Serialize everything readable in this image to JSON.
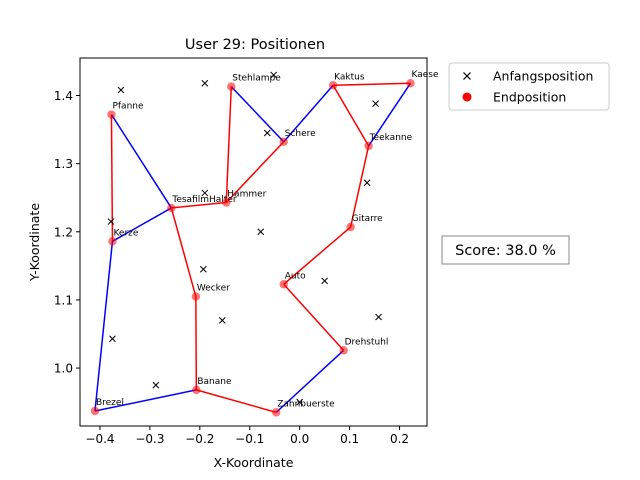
{
  "chart_data": {
    "type": "scatter",
    "title": "User 29: Positionen",
    "xlabel": "X-Koordinate",
    "ylabel": "Y-Koordinate",
    "xlim": [
      -0.44,
      0.255
    ],
    "ylim": [
      0.915,
      1.455
    ],
    "xticks": [
      -0.4,
      -0.3,
      -0.2,
      -0.1,
      0.0,
      0.1,
      0.2
    ],
    "xtick_labels": [
      "−0.4",
      "−0.3",
      "−0.2",
      "−0.1",
      "0.0",
      "0.1",
      "0.2"
    ],
    "yticks": [
      1.0,
      1.1,
      1.2,
      1.3,
      1.4
    ],
    "ytick_labels": [
      "1.0",
      "1.1",
      "1.2",
      "1.3",
      "1.4"
    ],
    "legend": {
      "placement": "outside-top-right",
      "entries": [
        {
          "label": "Anfangsposition",
          "marker": "x",
          "color": "#000000"
        },
        {
          "label": "Endposition",
          "marker": "o",
          "color": "#ff0000"
        }
      ]
    },
    "score_text": "Score: 38.0 %",
    "colors": {
      "red_segment": "#ff0000",
      "blue_segment": "#0000ff",
      "end_marker": "#ff0000"
    },
    "start_positions": [
      {
        "x": -0.358,
        "y": 1.408
      },
      {
        "x": -0.19,
        "y": 1.418
      },
      {
        "x": -0.052,
        "y": 1.43
      },
      {
        "x": 0.152,
        "y": 1.388
      },
      {
        "x": -0.065,
        "y": 1.345
      },
      {
        "x": 0.135,
        "y": 1.272
      },
      {
        "x": -0.19,
        "y": 1.257
      },
      {
        "x": -0.378,
        "y": 1.215
      },
      {
        "x": -0.078,
        "y": 1.2
      },
      {
        "x": -0.193,
        "y": 1.145
      },
      {
        "x": 0.05,
        "y": 1.128
      },
      {
        "x": 0.158,
        "y": 1.075
      },
      {
        "x": -0.155,
        "y": 1.07
      },
      {
        "x": -0.375,
        "y": 1.043
      },
      {
        "x": -0.288,
        "y": 0.975
      },
      {
        "x": 0.0,
        "y": 0.95
      }
    ],
    "end_positions": [
      {
        "name": "Pfanne",
        "x": -0.377,
        "y": 1.372
      },
      {
        "name": "Stehlampe",
        "x": -0.137,
        "y": 1.413
      },
      {
        "name": "Kaktus",
        "x": 0.067,
        "y": 1.415
      },
      {
        "name": "Kaese",
        "x": 0.222,
        "y": 1.418
      },
      {
        "name": "Schere",
        "x": -0.032,
        "y": 1.332
      },
      {
        "name": "Teekanne",
        "x": 0.138,
        "y": 1.326
      },
      {
        "name": "TesafilmHalter",
        "x": -0.257,
        "y": 1.235
      },
      {
        "name": "Hammer",
        "x": -0.147,
        "y": 1.243
      },
      {
        "name": "Kerze",
        "x": -0.375,
        "y": 1.186
      },
      {
        "name": "Gitarre",
        "x": 0.102,
        "y": 1.207
      },
      {
        "name": "Auto",
        "x": -0.032,
        "y": 1.123
      },
      {
        "name": "Wecker",
        "x": -0.208,
        "y": 1.105
      },
      {
        "name": "Drehstuhl",
        "x": 0.088,
        "y": 1.026
      },
      {
        "name": "Banane",
        "x": -0.207,
        "y": 0.968
      },
      {
        "name": "Brezel",
        "x": -0.41,
        "y": 0.937
      },
      {
        "name": "Zahnbuerste",
        "x": -0.047,
        "y": 0.935
      }
    ],
    "path_segments": [
      {
        "from": "Pfanne",
        "to": "Kerze",
        "color": "red"
      },
      {
        "from": "Pfanne",
        "to": "TesafilmHalter",
        "color": "blue"
      },
      {
        "from": "Kerze",
        "to": "TesafilmHalter",
        "color": "blue"
      },
      {
        "from": "Kerze",
        "to": "Brezel",
        "color": "blue"
      },
      {
        "from": "Brezel",
        "to": "Banane",
        "color": "blue"
      },
      {
        "from": "TesafilmHalter",
        "to": "Wecker",
        "color": "red"
      },
      {
        "from": "Wecker",
        "to": "Banane",
        "color": "red"
      },
      {
        "from": "Banane",
        "to": "Zahnbuerste",
        "color": "red"
      },
      {
        "from": "Zahnbuerste",
        "to": "Drehstuhl",
        "color": "blue"
      },
      {
        "from": "Drehstuhl",
        "to": "Auto",
        "color": "red"
      },
      {
        "from": "Auto",
        "to": "Gitarre",
        "color": "red"
      },
      {
        "from": "Gitarre",
        "to": "Teekanne",
        "color": "red"
      },
      {
        "from": "Teekanne",
        "to": "Kaktus",
        "color": "red"
      },
      {
        "from": "Teekanne",
        "to": "Kaese",
        "color": "blue"
      },
      {
        "from": "Kaktus",
        "to": "Kaese",
        "color": "red"
      },
      {
        "from": "Kaktus",
        "to": "Schere",
        "color": "blue"
      },
      {
        "from": "Schere",
        "to": "Stehlampe",
        "color": "blue"
      },
      {
        "from": "Schere",
        "to": "Hammer",
        "color": "red"
      },
      {
        "from": "Stehlampe",
        "to": "Hammer",
        "color": "red"
      },
      {
        "from": "Hammer",
        "to": "TesafilmHalter",
        "color": "red"
      }
    ]
  }
}
